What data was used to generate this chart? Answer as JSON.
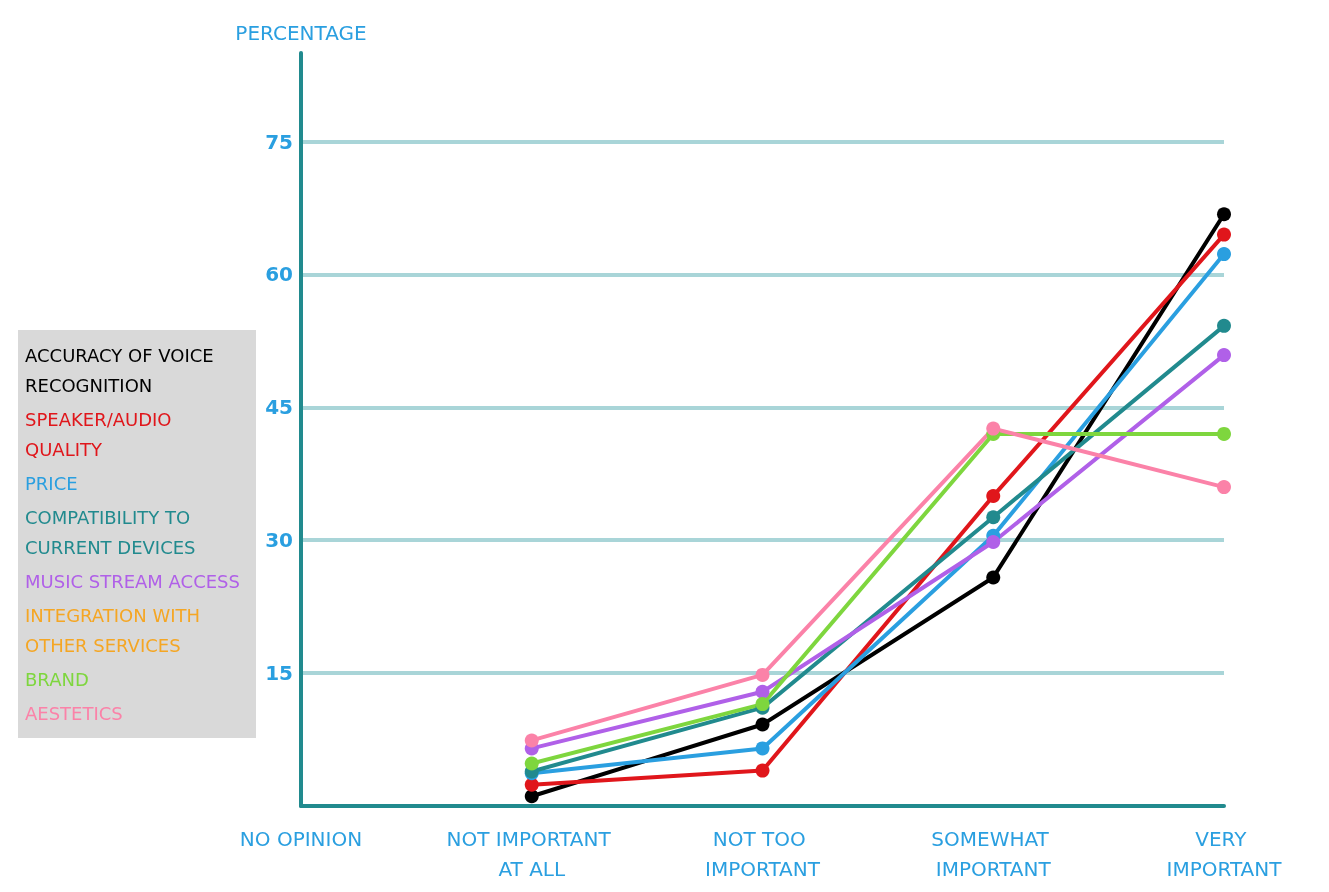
{
  "chart_data": {
    "type": "line",
    "ylabel": "PERCENTAGE",
    "categories": [
      "NO OPINION",
      "NOT IMPORTANT AT ALL",
      "NOT TOO IMPORTANT",
      "SOMEWHAT IMPORTANT",
      "VERY IMPORTANT"
    ],
    "ylim": [
      0,
      85
    ],
    "yticks": [
      15,
      30,
      45,
      60,
      75
    ],
    "grid": "y",
    "legend": "left",
    "marker": "circle",
    "line_style": "solid",
    "series": [
      {
        "name": "ACCURACY OF VOICE RECOGNITION",
        "color": "#000000",
        "values": [
          null,
          1.1,
          9.2,
          25.8,
          66.8
        ]
      },
      {
        "name": "SPEAKER/AUDIO QUALITY",
        "color": "#e0161b",
        "values": [
          null,
          2.4,
          4.0,
          35,
          64.5
        ]
      },
      {
        "name": "PRICE",
        "color": "#2a9fe0",
        "values": [
          null,
          3.7,
          6.5,
          30.5,
          62.3
        ]
      },
      {
        "name": "COMPATIBILITY TO CURRENT DEVICES",
        "color": "#218a8e",
        "values": [
          null,
          3.9,
          11.1,
          32.6,
          54.2
        ]
      },
      {
        "name": "MUSIC STREAM ACCESS",
        "color": "#b060e8",
        "values": [
          null,
          6.5,
          12.9,
          29.8,
          50.9
        ]
      },
      {
        "name": "INTEGRATION WITH OTHER SERVICES",
        "color": "#f5a623",
        "values": [
          null,
          null,
          null,
          null,
          null
        ]
      },
      {
        "name": "BRAND",
        "color": "#7ed63e",
        "values": [
          null,
          4.8,
          11.5,
          42,
          42
        ]
      },
      {
        "name": "AESTETICS",
        "color": "#fb82a8",
        "values": [
          null,
          7.4,
          14.8,
          42.6,
          36
        ]
      }
    ]
  }
}
